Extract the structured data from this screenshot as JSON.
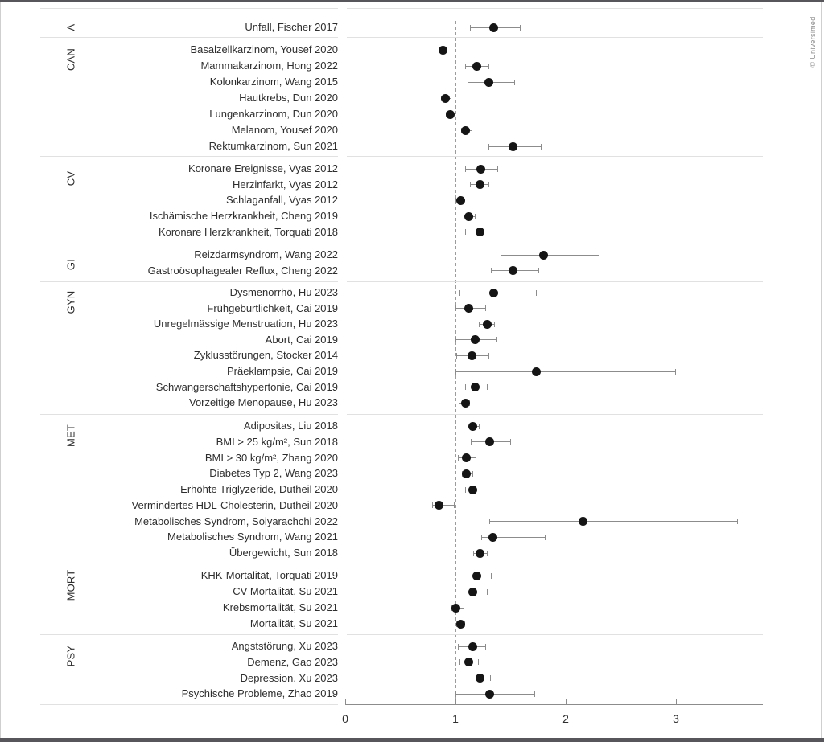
{
  "copyright": "© Universimed",
  "chart_data": {
    "type": "scatter",
    "subtype": "forest-plot",
    "title": "",
    "xlabel": "",
    "ylabel": "",
    "xlim": [
      0,
      3.8
    ],
    "x_ticks": [
      0,
      1,
      2,
      3
    ],
    "reference_line": 1,
    "grid": "section-dividers",
    "legend_position": "none",
    "point_color": "#151515",
    "whisker_color": "#8c8c8c",
    "sections": [
      {
        "code": "A",
        "rows": [
          {
            "label": "Unfall, Fischer 2017",
            "value": 1.35,
            "ci_low": 1.13,
            "ci_high": 1.59
          }
        ]
      },
      {
        "code": "CAN",
        "rows": [
          {
            "label": "Basalzellkarzinom, Yousef 2020",
            "value": 0.89,
            "ci_low": 0.85,
            "ci_high": 0.93
          },
          {
            "label": "Mammakarzinom, Hong 2022",
            "value": 1.19,
            "ci_low": 1.09,
            "ci_high": 1.31
          },
          {
            "label": "Kolonkarzinom, Wang 2015",
            "value": 1.3,
            "ci_low": 1.11,
            "ci_high": 1.54
          },
          {
            "label": "Hautkrebs, Dun 2020",
            "value": 0.91,
            "ci_low": 0.87,
            "ci_high": 0.96
          },
          {
            "label": "Lungenkarzinom, Dun 2020",
            "value": 0.95,
            "ci_low": 0.91,
            "ci_high": 1.0
          },
          {
            "label": "Melanom, Yousef 2020",
            "value": 1.09,
            "ci_low": 1.05,
            "ci_high": 1.15
          },
          {
            "label": "Rektumkarzinom, Sun 2021",
            "value": 1.52,
            "ci_low": 1.3,
            "ci_high": 1.78
          }
        ]
      },
      {
        "code": "CV",
        "rows": [
          {
            "label": "Koronare Ereignisse, Vyas 2012",
            "value": 1.23,
            "ci_low": 1.09,
            "ci_high": 1.39
          },
          {
            "label": "Herzinfarkt, Vyas 2012",
            "value": 1.22,
            "ci_low": 1.13,
            "ci_high": 1.31
          },
          {
            "label": "Schlaganfall, Vyas 2012",
            "value": 1.05,
            "ci_low": 1.0,
            "ci_high": 1.08
          },
          {
            "label": "Ischämische Herzkrankheit, Cheng 2019",
            "value": 1.12,
            "ci_low": 1.07,
            "ci_high": 1.18
          },
          {
            "label": "Koronare Herzkrankheit, Torquati 2018",
            "value": 1.22,
            "ci_low": 1.09,
            "ci_high": 1.37
          }
        ]
      },
      {
        "code": "GI",
        "rows": [
          {
            "label": "Reizdarmsyndrom, Wang 2022",
            "value": 1.8,
            "ci_low": 1.41,
            "ci_high": 2.31
          },
          {
            "label": "Gastroösophagealer Reflux, Cheng 2022",
            "value": 1.52,
            "ci_low": 1.32,
            "ci_high": 1.76
          }
        ]
      },
      {
        "code": "GYN",
        "rows": [
          {
            "label": "Dysmenorrhö, Hu 2023",
            "value": 1.35,
            "ci_low": 1.04,
            "ci_high": 1.74
          },
          {
            "label": "Frühgeburtlichkeit, Cai 2019",
            "value": 1.12,
            "ci_low": 1.0,
            "ci_high": 1.28
          },
          {
            "label": "Unregelmässige Menstruation, Hu 2023",
            "value": 1.29,
            "ci_low": 1.21,
            "ci_high": 1.36
          },
          {
            "label": "Abort, Cai 2019",
            "value": 1.18,
            "ci_low": 1.0,
            "ci_high": 1.38
          },
          {
            "label": "Zyklusstörungen, Stocker 2014",
            "value": 1.15,
            "ci_low": 1.01,
            "ci_high": 1.31
          },
          {
            "label": "Präeklampsie, Cai 2019",
            "value": 1.73,
            "ci_low": 1.0,
            "ci_high": 3.0
          },
          {
            "label": "Schwangerschaftshypertonie, Cai 2019",
            "value": 1.18,
            "ci_low": 1.09,
            "ci_high": 1.29
          },
          {
            "label": "Vorzeitige Menopause, Hu 2023",
            "value": 1.09,
            "ci_low": 1.03,
            "ci_high": 1.13
          }
        ]
      },
      {
        "code": "MET",
        "rows": [
          {
            "label": "Adipositas, Liu 2018",
            "value": 1.16,
            "ci_low": 1.11,
            "ci_high": 1.22
          },
          {
            "label": "BMI > 25 kg/m², Sun 2018",
            "value": 1.31,
            "ci_low": 1.14,
            "ci_high": 1.5
          },
          {
            "label": "BMI > 30 kg/m², Zhang 2020",
            "value": 1.1,
            "ci_low": 1.02,
            "ci_high": 1.19
          },
          {
            "label": "Diabetes Typ 2, Wang 2023",
            "value": 1.1,
            "ci_low": 1.06,
            "ci_high": 1.16
          },
          {
            "label": "Erhöhte Triglyzeride, Dutheil 2020",
            "value": 1.16,
            "ci_low": 1.09,
            "ci_high": 1.26
          },
          {
            "label": "Vermindertes HDL-Cholesterin, Dutheil 2020",
            "value": 0.85,
            "ci_low": 0.79,
            "ci_high": 0.99
          },
          {
            "label": "Metabolisches Syndrom, Soiyarachchi 2022",
            "value": 2.16,
            "ci_low": 1.31,
            "ci_high": 3.56
          },
          {
            "label": "Metabolisches Syndrom, Wang 2021",
            "value": 1.34,
            "ci_low": 1.23,
            "ci_high": 1.82
          },
          {
            "label": "Übergewicht, Sun 2018",
            "value": 1.22,
            "ci_low": 1.16,
            "ci_high": 1.29
          }
        ]
      },
      {
        "code": "MORT",
        "rows": [
          {
            "label": "KHK-Mortalität, Torquati 2019",
            "value": 1.19,
            "ci_low": 1.07,
            "ci_high": 1.33
          },
          {
            "label": "CV Mortalität, Su 2021",
            "value": 1.16,
            "ci_low": 1.03,
            "ci_high": 1.29
          },
          {
            "label": "Krebsmortalität, Su 2021",
            "value": 1.0,
            "ci_low": 0.96,
            "ci_high": 1.08
          },
          {
            "label": "Mortalität, Su 2021",
            "value": 1.05,
            "ci_low": 1.01,
            "ci_high": 1.09
          }
        ]
      },
      {
        "code": "PSY",
        "rows": [
          {
            "label": "Angststörung, Xu 2023",
            "value": 1.16,
            "ci_low": 1.02,
            "ci_high": 1.28
          },
          {
            "label": "Demenz, Gao 2023",
            "value": 1.12,
            "ci_low": 1.04,
            "ci_high": 1.21
          },
          {
            "label": "Depression, Xu 2023",
            "value": 1.22,
            "ci_low": 1.11,
            "ci_high": 1.32
          },
          {
            "label": "Psychische Probleme, Zhao 2019",
            "value": 1.31,
            "ci_low": 1.0,
            "ci_high": 1.72
          }
        ]
      }
    ]
  }
}
